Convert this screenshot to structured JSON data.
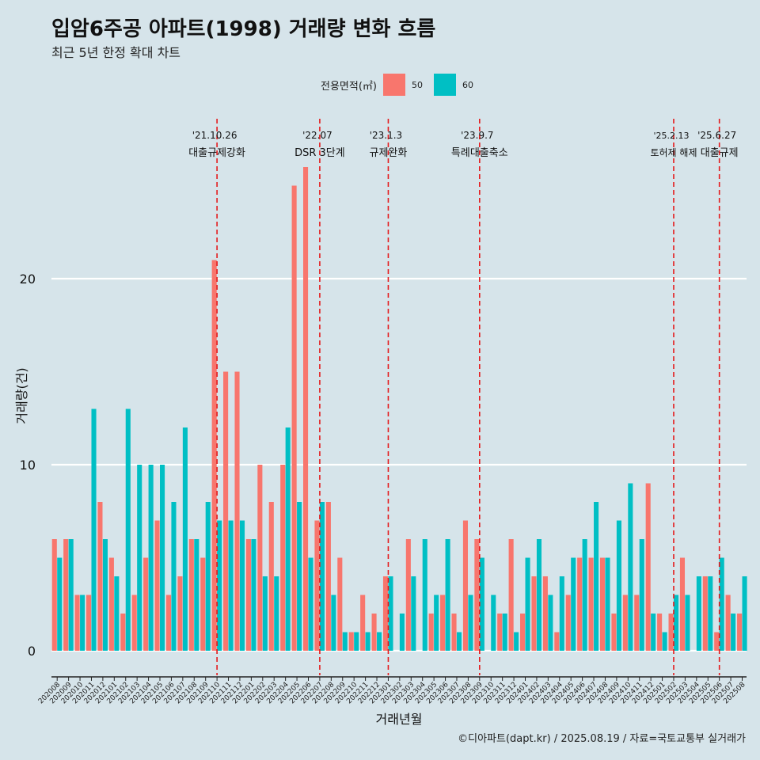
{
  "chart_data": {
    "type": "bar",
    "title": "입암6주공 아파트(1998) 거래량 변화 흐름",
    "subtitle": "최근 5년 한정 확대 차트",
    "xlabel": "거래년월",
    "ylabel": "거래량(건)",
    "ylim": [
      0,
      26
    ],
    "yticks": [
      0,
      10,
      20
    ],
    "legend_title": "전용면적(㎡)",
    "legend_position": "top",
    "caption": "©디아파트(dapt.kr) / 2025.08.19 / 자료=국토교통부 실거래가",
    "categories": [
      "202008",
      "202009",
      "202010",
      "202011",
      "202012",
      "202101",
      "202102",
      "202103",
      "202104",
      "202105",
      "202106",
      "202107",
      "202108",
      "202109",
      "202110",
      "202111",
      "202112",
      "202201",
      "202202",
      "202203",
      "202204",
      "202205",
      "202206",
      "202207",
      "202208",
      "202209",
      "202210",
      "202211",
      "202212",
      "202301",
      "202302",
      "202303",
      "202304",
      "202305",
      "202306",
      "202307",
      "202308",
      "202309",
      "202310",
      "202311",
      "202312",
      "202401",
      "202402",
      "202403",
      "202404",
      "202405",
      "202406",
      "202407",
      "202408",
      "202409",
      "202410",
      "202411",
      "202412",
      "202501",
      "202502",
      "202503",
      "202504",
      "202505",
      "202506",
      "202507",
      "202508"
    ],
    "series": [
      {
        "name": "50",
        "color": "#f8766d",
        "values": [
          6,
          6,
          3,
          3,
          8,
          5,
          2,
          3,
          5,
          7,
          3,
          4,
          6,
          5,
          21,
          15,
          15,
          6,
          10,
          8,
          10,
          25,
          26,
          7,
          8,
          5,
          1,
          3,
          2,
          4,
          0,
          6,
          0,
          2,
          3,
          2,
          7,
          6,
          0,
          2,
          6,
          2,
          4,
          4,
          1,
          3,
          5,
          5,
          5,
          2,
          3,
          3,
          9,
          2,
          2,
          5,
          0,
          4,
          1,
          3,
          2
        ]
      },
      {
        "name": "60",
        "color": "#00bfc4",
        "values": [
          5,
          6,
          3,
          13,
          6,
          4,
          13,
          10,
          10,
          10,
          8,
          12,
          6,
          8,
          7,
          7,
          7,
          6,
          4,
          4,
          12,
          8,
          5,
          8,
          3,
          1,
          1,
          1,
          1,
          4,
          2,
          4,
          6,
          3,
          6,
          1,
          3,
          5,
          3,
          2,
          1,
          5,
          6,
          3,
          4,
          5,
          6,
          8,
          5,
          7,
          9,
          6,
          2,
          1,
          3,
          3,
          4,
          4,
          5,
          2,
          4
        ]
      }
    ],
    "events": [
      {
        "date": "'21.10.26",
        "label": "대출규제강화",
        "category": "202110"
      },
      {
        "date": "'22.07",
        "label": "DSR 3단계",
        "category": "202207"
      },
      {
        "date": "'23.1.3",
        "label": "규제완화",
        "category": "202301"
      },
      {
        "date": "'23.9.7",
        "label": "특례대출축소",
        "category": "202309"
      },
      {
        "date": "'25.2.13",
        "label": "토허제 해제",
        "category": "202502"
      },
      {
        "date": "'25.6.27",
        "label": "대출규제",
        "category": "202506"
      }
    ]
  }
}
